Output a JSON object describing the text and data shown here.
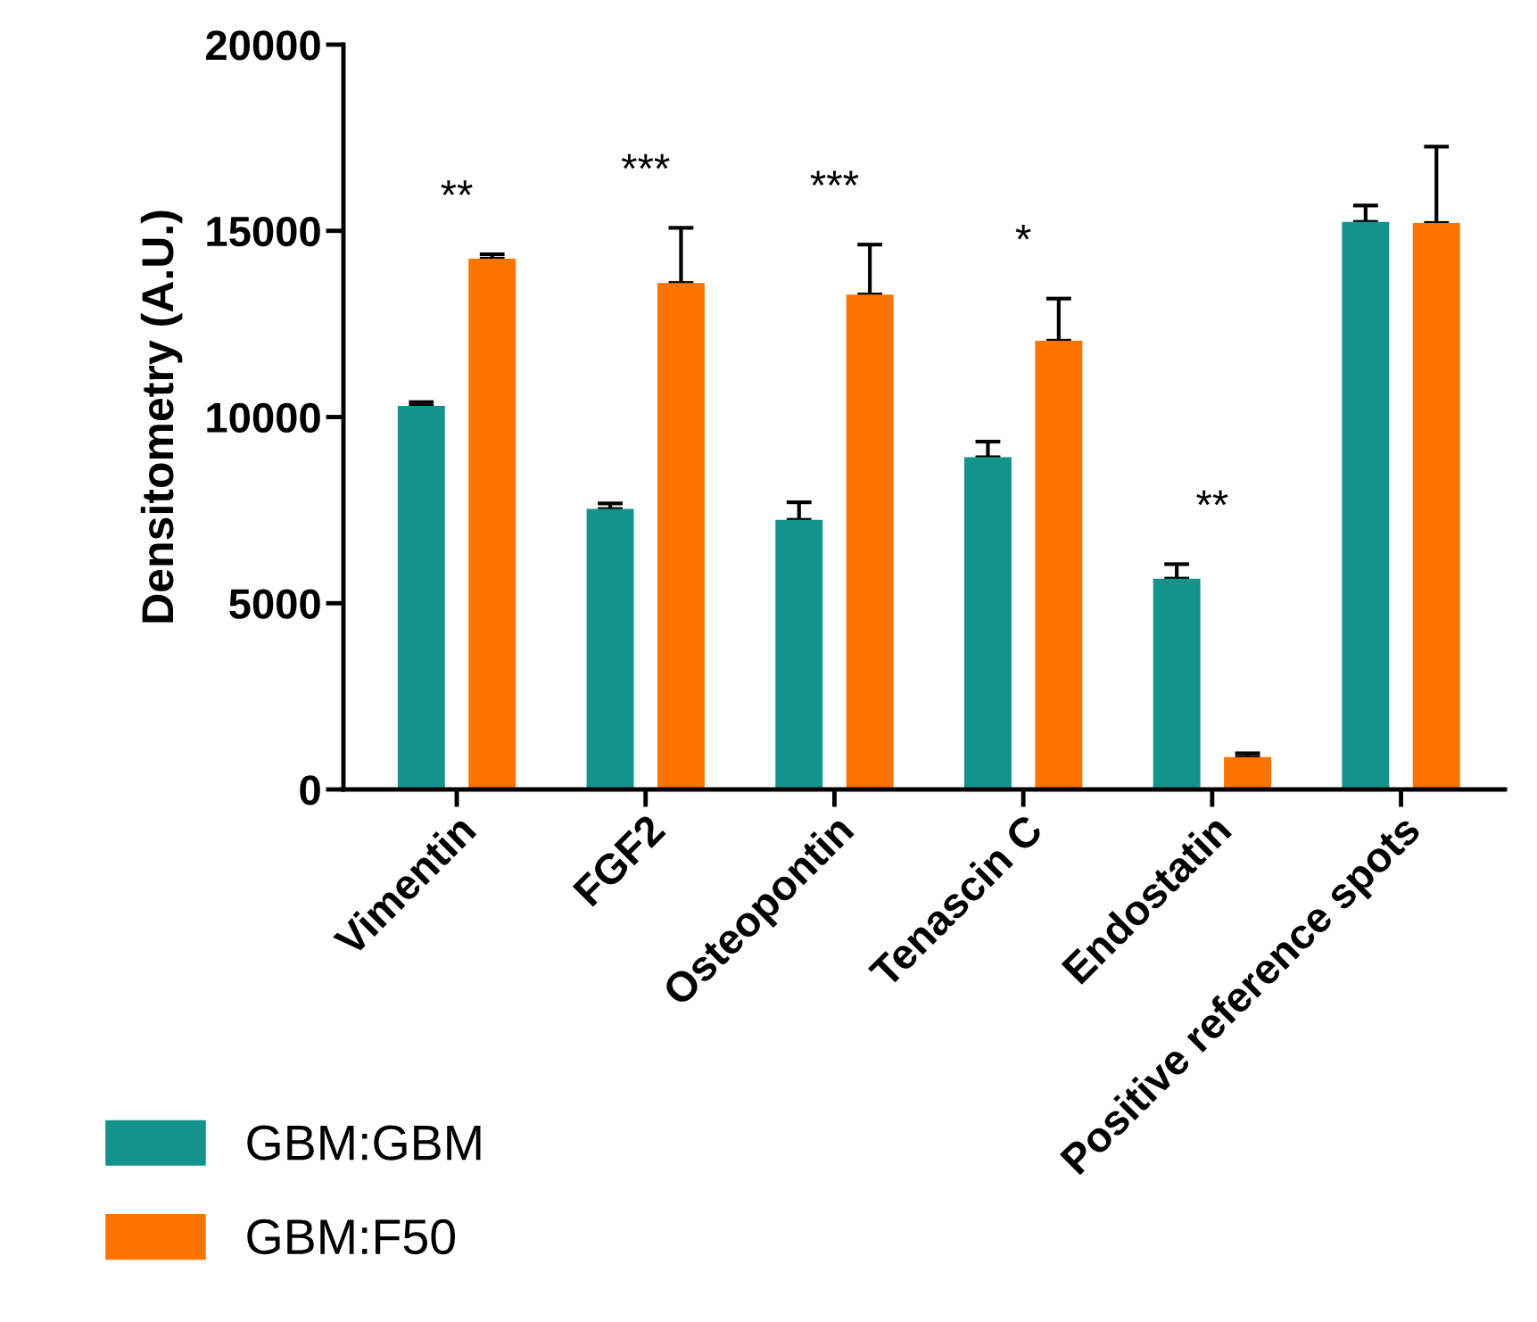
{
  "chart_data": {
    "type": "bar",
    "ylabel": "Densitometry (A.U.)",
    "categories": [
      "Vimentin",
      "FGF2",
      "Osteopontin",
      "Tenascin C",
      "Endostatin",
      "Positive reference spots"
    ],
    "series": [
      {
        "name": "GBM:GBM",
        "color": "#12938c",
        "values": [
          10300,
          7530,
          7240,
          8920,
          5660,
          15240
        ],
        "errors": [
          [
            10300,
            10400
          ],
          [
            7530,
            7680
          ],
          [
            7240,
            7710
          ],
          [
            8920,
            9340
          ],
          [
            5660,
            6050
          ],
          [
            15240,
            15680
          ]
        ]
      },
      {
        "name": "GBM:F50",
        "color": "#ff7400",
        "values": [
          14250,
          13600,
          13290,
          12050,
          870,
          15210
        ],
        "errors": [
          [
            14250,
            14370
          ],
          [
            13600,
            15080
          ],
          [
            13290,
            14630
          ],
          [
            12050,
            13180
          ],
          [
            870,
            970
          ],
          [
            15210,
            17260
          ]
        ]
      }
    ],
    "ylim": [
      0,
      20000
    ],
    "yticks": [
      0,
      5000,
      10000,
      15000,
      20000
    ],
    "grid": false,
    "legend": "bottom left",
    "annotations": [
      "**",
      "***",
      "***",
      "*",
      "**"
    ]
  }
}
